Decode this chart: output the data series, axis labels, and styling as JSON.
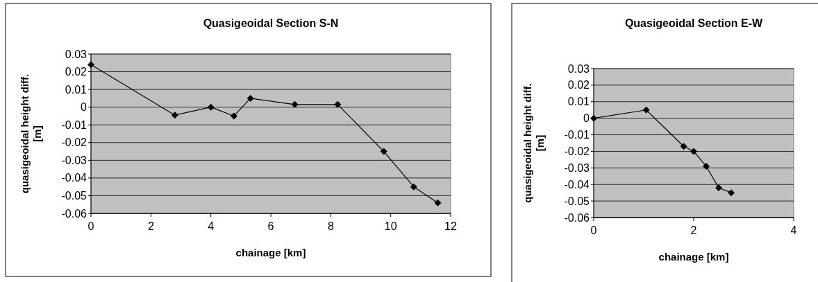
{
  "chart_data": [
    {
      "type": "line",
      "title": "Quasigeoidal Section S-N",
      "xlabel": "chainage [km]",
      "ylabel": "quasigeoidal height diff. [m]",
      "x": [
        0,
        2.8,
        4,
        4.77,
        5.32,
        6.8,
        8.23,
        9.77,
        10.77,
        11.57
      ],
      "series": [
        {
          "color": "#000000",
          "values": [
            0.024,
            -0.0045,
            0,
            -0.005,
            0.005,
            0.0015,
            0.0015,
            -0.025,
            -0.045,
            -0.054
          ]
        }
      ],
      "xlim": [
        0,
        12
      ],
      "xticks": [
        0,
        2,
        4,
        6,
        8,
        10,
        12
      ],
      "ylim": [
        -0.06,
        0.03
      ],
      "yticks": [
        -0.06,
        -0.05,
        -0.04,
        -0.03,
        -0.02,
        -0.01,
        0,
        0.01,
        0.02,
        0.03
      ],
      "grid": "y",
      "marker": "diamond"
    },
    {
      "type": "line",
      "title": "Quasigeoidal Section E-W",
      "xlabel": "chainage [km]",
      "ylabel": "quasigeoidal height diff. [m]",
      "x": [
        0,
        1.05,
        1.8,
        2,
        2.25,
        2.5,
        2.75
      ],
      "series": [
        {
          "color": "#000000",
          "values": [
            0,
            0.005,
            -0.017,
            -0.02,
            -0.029,
            -0.042,
            -0.045
          ]
        }
      ],
      "xlim": [
        0,
        4
      ],
      "xticks": [
        0,
        2,
        4
      ],
      "ylim": [
        -0.06,
        0.03
      ],
      "yticks": [
        -0.06,
        -0.05,
        -0.04,
        -0.03,
        -0.02,
        -0.01,
        0,
        0.01,
        0.02,
        0.03
      ],
      "grid": "y",
      "marker": "diamond"
    }
  ]
}
